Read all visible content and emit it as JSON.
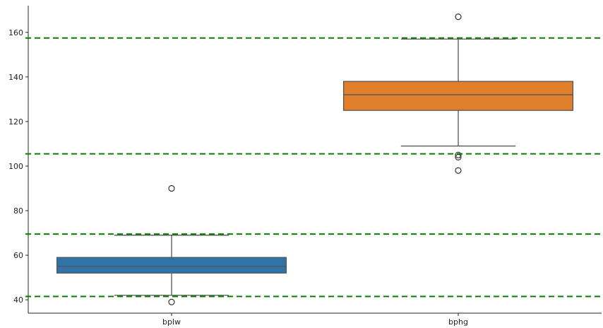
{
  "chart_data": {
    "type": "box",
    "title": "",
    "xlabel": "",
    "ylabel": "",
    "ylim": [
      34,
      172
    ],
    "y_ticks": [
      40,
      60,
      80,
      100,
      120,
      140,
      160
    ],
    "categories": [
      "bplw",
      "bphg"
    ],
    "series": [
      {
        "category": "bplw",
        "color": "#2e74a8",
        "q1": 52,
        "median": 55,
        "q3": 59,
        "whisker_low": 42,
        "whisker_high": 69,
        "outliers": [
          90,
          39
        ]
      },
      {
        "category": "bphg",
        "color": "#e17f2a",
        "q1": 125,
        "median": 132,
        "q3": 138,
        "whisker_low": 109,
        "whisker_high": 157,
        "outliers": [
          167,
          105,
          104,
          98
        ]
      }
    ],
    "reference_lines": {
      "color": "#008000",
      "style": "dashed",
      "values": [
        157.5,
        105.5,
        69.5,
        41.5
      ]
    },
    "grid": false,
    "legend": "none"
  }
}
